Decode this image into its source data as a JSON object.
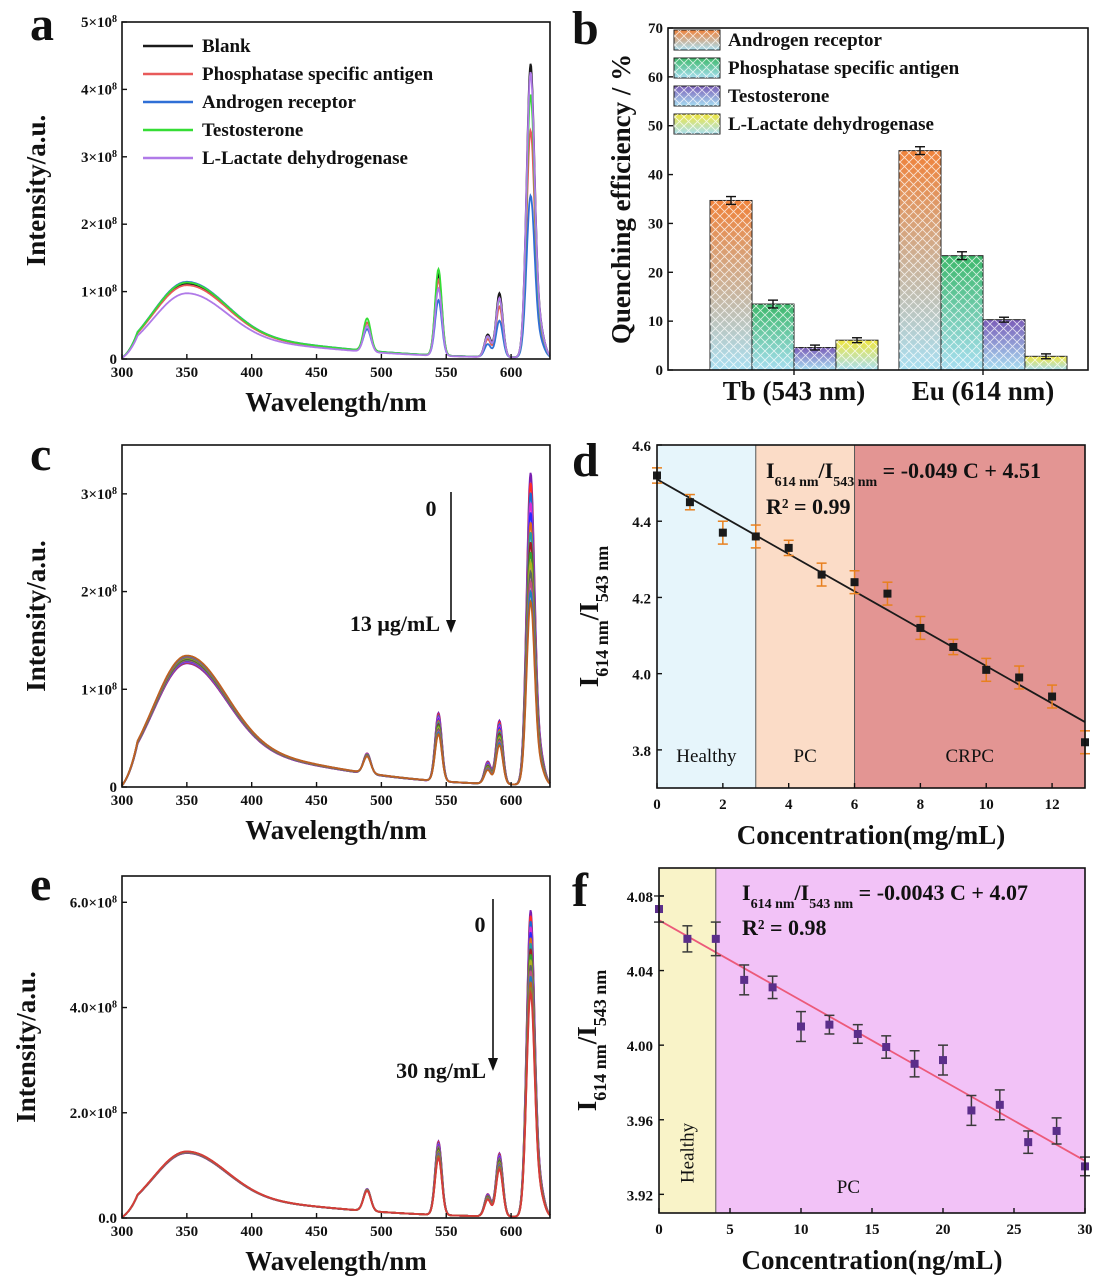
{
  "figure": {
    "panels": {
      "a": "a",
      "b": "b",
      "c": "c",
      "d": "d",
      "e": "e",
      "f": "f"
    }
  },
  "chart_data": [
    {
      "id": "a",
      "type": "line",
      "xlabel": "Wavelength/nm",
      "ylabel": "Intensity/a.u.",
      "xlim": [
        300,
        630
      ],
      "ylim": [
        0,
        500000000
      ],
      "xticks": [
        300,
        350,
        400,
        450,
        500,
        550,
        600
      ],
      "xtick_labels": [
        "300",
        "350",
        "400",
        "450",
        "500",
        "550",
        "600"
      ],
      "yticks": [
        0,
        100000000,
        200000000,
        300000000,
        400000000,
        500000000
      ],
      "ytick_labels": [
        "0",
        "1×10⁸",
        "2×10⁸",
        "3×10⁸",
        "4×10⁸",
        "5×10⁸"
      ],
      "legend": "top-left",
      "series": [
        {
          "name": "Blank",
          "color": "#1a1a1a",
          "broad": 110,
          "p488": 42,
          "p543": 120,
          "p590": 95,
          "p614": 430
        },
        {
          "name": "Phosphatase specific antigen",
          "color": "#e85a5a",
          "broad": 108,
          "p488": 42,
          "p543": 112,
          "p590": 75,
          "p614": 332
        },
        {
          "name": "Androgen receptor",
          "color": "#2f6fd6",
          "broad": 113,
          "p488": 32,
          "p543": 82,
          "p590": 54,
          "p614": 237
        },
        {
          "name": "Testosterone",
          "color": "#35dd35",
          "broad": 112,
          "p488": 48,
          "p543": 128,
          "p590": 86,
          "p614": 385
        },
        {
          "name": "L-Lactate dehydrogenase",
          "color": "#b07ae8",
          "broad": 96,
          "p488": 38,
          "p543": 100,
          "p590": 88,
          "p614": 418
        }
      ]
    },
    {
      "id": "b",
      "type": "bar",
      "xlabel": "",
      "ylabel": "Quenching efficiency / %",
      "ylim": [
        0,
        70
      ],
      "yticks": [
        0,
        10,
        20,
        30,
        40,
        50,
        60,
        70
      ],
      "categories": [
        "Tb (543 nm)",
        "Eu (614 nm)"
      ],
      "legend": "top-left",
      "series": [
        {
          "name": "Androgen receptor",
          "color": "#f0823a",
          "values": [
            34.7,
            44.9
          ],
          "errors": [
            0.8,
            0.8
          ]
        },
        {
          "name": "Phosphatase specific antigen",
          "color": "#3cb86a",
          "values": [
            13.5,
            23.4
          ],
          "errors": [
            0.8,
            0.8
          ]
        },
        {
          "name": "Testosterone",
          "color": "#7a5cb8",
          "values": [
            4.6,
            10.3
          ],
          "errors": [
            0.5,
            0.5
          ]
        },
        {
          "name": "L-Lactate dehydrogenase",
          "color": "#f0e63c",
          "values": [
            6.1,
            2.8
          ],
          "errors": [
            0.5,
            0.5
          ]
        }
      ]
    },
    {
      "id": "c",
      "type": "line",
      "xlabel": "Wavelength/nm",
      "ylabel": "Intensity/a.u.",
      "xlim": [
        300,
        630
      ],
      "ylim": [
        0,
        350000000
      ],
      "xticks": [
        300,
        350,
        400,
        450,
        500,
        550,
        600
      ],
      "xtick_labels": [
        "300",
        "350",
        "400",
        "450",
        "500",
        "550",
        "600"
      ],
      "yticks": [
        0,
        100000000,
        200000000,
        300000000
      ],
      "ytick_labels": [
        "0",
        "1×10⁸",
        "2×10⁸",
        "3×10⁸"
      ],
      "annotation_top": "0",
      "annotation_bottom": "13 μg/mL",
      "series_count": 14,
      "p614_range": [
        315,
        185
      ],
      "p543_range": [
        70,
        48
      ],
      "p590_range": [
        65,
        40
      ],
      "broad_range": [
        125,
        133
      ]
    },
    {
      "id": "d",
      "type": "scatter",
      "xlabel": "Concentration(mg/mL)",
      "ylabel": "I614 nm/I543 nm",
      "xlim": [
        0,
        13
      ],
      "ylim": [
        3.7,
        4.6
      ],
      "xticks": [
        0,
        2,
        4,
        6,
        8,
        10,
        12
      ],
      "yticks": [
        3.8,
        4.0,
        4.2,
        4.4,
        4.6
      ],
      "ytick_labels": [
        "3.8",
        "4.0",
        "4.2",
        "4.4",
        "4.6"
      ],
      "x": [
        0,
        1,
        2,
        3,
        4,
        5,
        6,
        7,
        8,
        9,
        10,
        11,
        12,
        13
      ],
      "y": [
        4.52,
        4.45,
        4.37,
        4.36,
        4.33,
        4.26,
        4.24,
        4.21,
        4.12,
        4.07,
        4.01,
        3.99,
        3.94,
        3.82
      ],
      "errors": [
        0.02,
        0.02,
        0.03,
        0.03,
        0.02,
        0.03,
        0.03,
        0.03,
        0.03,
        0.02,
        0.03,
        0.03,
        0.03,
        0.03
      ],
      "fit": {
        "slope": -0.049,
        "intercept": 4.51,
        "color": "#1a1a1a"
      },
      "equation": "I614 nm/I543 nm = -0.049 C + 4.51",
      "r2": "R² = 0.99",
      "zones": [
        {
          "name": "Healthy",
          "from": 0,
          "to": 3,
          "color": "#e6f5fb"
        },
        {
          "name": "PC",
          "from": 3,
          "to": 6,
          "color": "#fbdcc7"
        },
        {
          "name": "CRPC",
          "from": 6,
          "to": 13,
          "color": "#e39593"
        }
      ]
    },
    {
      "id": "e",
      "type": "line",
      "xlabel": "Wavelength/nm",
      "ylabel": "Intensity/a.u.",
      "xlim": [
        300,
        630
      ],
      "ylim": [
        0,
        650000000
      ],
      "xticks": [
        300,
        350,
        400,
        450,
        500,
        550,
        600
      ],
      "xtick_labels": [
        "300",
        "350",
        "400",
        "450",
        "500",
        "550",
        "600"
      ],
      "yticks": [
        0,
        200000000,
        400000000,
        600000000
      ],
      "ytick_labels": [
        "0.0",
        "2.0×10⁸",
        "4.0×10⁸",
        "6.0×10⁸"
      ],
      "annotation_top": "0",
      "annotation_bottom": "30 ng/mL",
      "series_count": 16,
      "p614_range": [
        575,
        420
      ],
      "p543_range": [
        140,
        108
      ],
      "p590_range": [
        120,
        90
      ],
      "broad_range": [
        122,
        125
      ]
    },
    {
      "id": "f",
      "type": "scatter",
      "xlabel": "Concentration(ng/mL)",
      "ylabel": "I614 nm/I543 nm",
      "xlim": [
        0,
        30
      ],
      "ylim": [
        3.91,
        4.095
      ],
      "xticks": [
        0,
        5,
        10,
        15,
        20,
        25,
        30
      ],
      "yticks": [
        3.92,
        3.96,
        4.0,
        4.04,
        4.08
      ],
      "ytick_labels": [
        "3.92",
        "3.96",
        "4.00",
        "4.04",
        "4.08"
      ],
      "x": [
        0,
        2,
        4,
        6,
        8,
        10,
        12,
        14,
        16,
        18,
        20,
        22,
        24,
        26,
        28,
        30
      ],
      "y": [
        4.073,
        4.057,
        4.057,
        4.035,
        4.031,
        4.01,
        4.011,
        4.006,
        3.999,
        3.99,
        3.992,
        3.965,
        3.968,
        3.948,
        3.954,
        3.935
      ],
      "errors": [
        0.007,
        0.007,
        0.009,
        0.008,
        0.006,
        0.008,
        0.005,
        0.005,
        0.006,
        0.007,
        0.008,
        0.008,
        0.008,
        0.006,
        0.007,
        0.005
      ],
      "fit": {
        "slope": -0.0043,
        "intercept": 4.067,
        "color": "#ec5a7a"
      },
      "equation": "I614 nm/I543 nm = -0.0043 C + 4.07",
      "r2": "R² = 0.98",
      "zones": [
        {
          "name": "Healthy",
          "from": 0,
          "to": 4,
          "color": "#f9f3c8"
        },
        {
          "name": "PC",
          "from": 4,
          "to": 30,
          "color": "#f2c2f7"
        }
      ]
    }
  ]
}
